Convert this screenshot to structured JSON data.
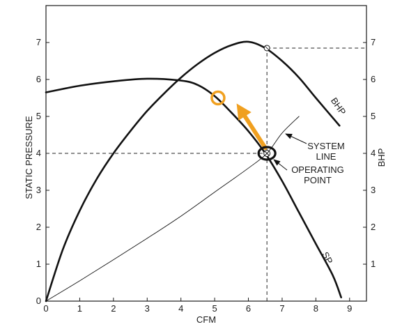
{
  "chart_data": {
    "type": "line",
    "title": "",
    "xlabel": "CFM",
    "ylabel_left": "STATIC PRESSURE",
    "ylabel_right": "BHP",
    "xlim": [
      0,
      9.5
    ],
    "ylim": [
      0,
      8
    ],
    "x_ticks": [
      "0",
      "1",
      "2",
      "3",
      "4",
      "5",
      "6",
      "7",
      "8",
      "9"
    ],
    "y_ticks_left": [
      "0",
      "1",
      "2",
      "3",
      "4",
      "5",
      "6",
      "7"
    ],
    "y_ticks_right": [
      "1",
      "2",
      "3",
      "4",
      "5",
      "6",
      "7"
    ],
    "grid": false,
    "series": [
      {
        "name": "SP",
        "style": "thick",
        "x": [
          0,
          1,
          2,
          3,
          4,
          4.5,
          5,
          5.5,
          6,
          6.5,
          7,
          7.5,
          8,
          8.5,
          8.75
        ],
        "y": [
          5.65,
          5.83,
          5.95,
          6.02,
          5.97,
          5.85,
          5.55,
          5.1,
          4.6,
          4.0,
          3.25,
          2.4,
          1.55,
          0.7,
          0.1
        ]
      },
      {
        "name": "BHP",
        "style": "thick",
        "x": [
          0,
          0.5,
          1,
          1.5,
          2,
          2.5,
          3,
          3.5,
          4,
          4.5,
          5,
          5.5,
          6,
          6.5,
          7,
          7.5,
          8,
          8.7
        ],
        "y": [
          0,
          1.4,
          2.45,
          3.3,
          4.0,
          4.6,
          5.15,
          5.62,
          6.05,
          6.42,
          6.72,
          6.93,
          7.02,
          6.85,
          6.5,
          6.05,
          5.5,
          4.75
        ]
      },
      {
        "name": "SYSTEM LINE",
        "style": "thin",
        "x": [
          0,
          1,
          2,
          3,
          4,
          5,
          6,
          6.55,
          7,
          7.5
        ],
        "y": [
          0,
          0.55,
          1.12,
          1.7,
          2.3,
          2.95,
          3.6,
          4.0,
          4.55,
          5.0
        ]
      }
    ],
    "reference_lines": [
      {
        "type": "horizontal",
        "y": 4.0,
        "x_from": 0,
        "x_to": 6.55,
        "style": "dashed"
      },
      {
        "type": "vertical",
        "x": 6.55,
        "y_from": 0,
        "y_to": 6.85,
        "style": "dashed"
      },
      {
        "type": "horizontal",
        "y": 6.85,
        "x_from": 6.55,
        "x_to": 9.5,
        "style": "dashed"
      }
    ],
    "markers": [
      {
        "name": "operating-point",
        "x": 6.55,
        "y": 4.0,
        "shape": "circle-x"
      },
      {
        "name": "bhp-point",
        "x": 6.55,
        "y": 6.85,
        "shape": "small-circle"
      },
      {
        "name": "new-point",
        "x": 5.1,
        "y": 5.5,
        "shape": "ring",
        "color": "#f0a020"
      }
    ],
    "arrow": {
      "from": {
        "x": 6.5,
        "y": 4.15
      },
      "to": {
        "x": 5.65,
        "y": 5.35
      },
      "color": "#f0a020"
    },
    "annotations": {
      "system_line": [
        "SYSTEM",
        "LINE"
      ],
      "operating_point": [
        "OPERATING",
        "POINT"
      ],
      "sp_curve_label": "SP",
      "bhp_curve_label": "BHP"
    },
    "colors": {
      "axis": "#1a1a1a",
      "curve": "#111111",
      "highlight": "#f0a020",
      "operating_ring": "#111111"
    }
  }
}
